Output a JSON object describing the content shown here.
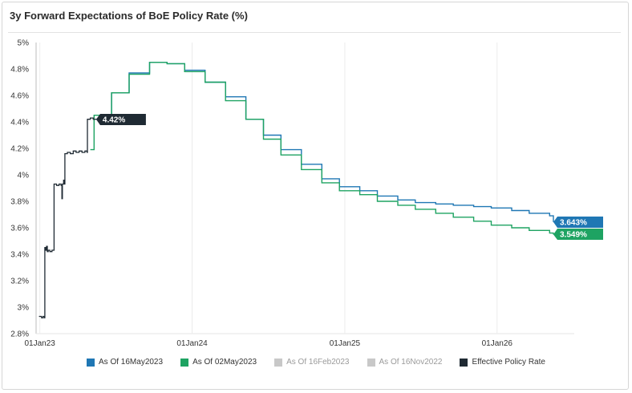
{
  "title": "3y Forward Expectations of BoE Policy Rate (%)",
  "chart_data": {
    "type": "line",
    "title": "3y Forward Expectations of BoE Policy Rate (%)",
    "xlabel": "",
    "ylabel": "",
    "ylim": [
      2.8,
      5.0
    ],
    "y_ticks": [
      "2.8%",
      "3%",
      "3.2%",
      "3.4%",
      "3.6%",
      "3.8%",
      "4%",
      "4.2%",
      "4.4%",
      "4.6%",
      "4.8%",
      "5%"
    ],
    "x_ticks": [
      "01Jan23",
      "01Jan24",
      "01Jan25",
      "01Jan26"
    ],
    "grid": "vertical",
    "legend": "bottom",
    "series": [
      {
        "name": "As Of 16May2023",
        "color": "#1f77b4",
        "end_label": "3.643%",
        "points": [
          [
            "2023-05-16",
            4.42
          ],
          [
            "2023-06-22",
            4.62
          ],
          [
            "2023-08-03",
            4.77
          ],
          [
            "2023-09-21",
            4.85
          ],
          [
            "2023-11-02",
            4.84
          ],
          [
            "2023-12-14",
            4.79
          ],
          [
            "2024-02-01",
            4.7
          ],
          [
            "2024-03-21",
            4.59
          ],
          [
            "2024-05-09",
            4.42
          ],
          [
            "2024-06-20",
            4.3
          ],
          [
            "2024-08-01",
            4.19
          ],
          [
            "2024-09-19",
            4.08
          ],
          [
            "2024-11-07",
            3.97
          ],
          [
            "2024-12-19",
            3.91
          ],
          [
            "2025-02-06",
            3.88
          ],
          [
            "2025-03-20",
            3.84
          ],
          [
            "2025-05-08",
            3.81
          ],
          [
            "2025-06-19",
            3.79
          ],
          [
            "2025-08-07",
            3.78
          ],
          [
            "2025-09-18",
            3.77
          ],
          [
            "2025-11-06",
            3.76
          ],
          [
            "2025-12-18",
            3.75
          ],
          [
            "2026-02-05",
            3.73
          ],
          [
            "2026-03-19",
            3.71
          ],
          [
            "2026-05-07",
            3.69
          ],
          [
            "2026-05-16",
            3.643
          ]
        ]
      },
      {
        "name": "As Of 02May2023",
        "color": "#1ea362",
        "end_label": "3.549%",
        "points": [
          [
            "2023-05-02",
            4.19
          ],
          [
            "2023-05-11",
            4.45
          ],
          [
            "2023-06-22",
            4.62
          ],
          [
            "2023-08-03",
            4.76
          ],
          [
            "2023-09-21",
            4.85
          ],
          [
            "2023-11-02",
            4.84
          ],
          [
            "2023-12-14",
            4.78
          ],
          [
            "2024-02-01",
            4.7
          ],
          [
            "2024-03-21",
            4.56
          ],
          [
            "2024-05-09",
            4.42
          ],
          [
            "2024-06-20",
            4.27
          ],
          [
            "2024-08-01",
            4.15
          ],
          [
            "2024-09-19",
            4.04
          ],
          [
            "2024-11-07",
            3.94
          ],
          [
            "2024-12-19",
            3.88
          ],
          [
            "2025-02-06",
            3.85
          ],
          [
            "2025-03-20",
            3.8
          ],
          [
            "2025-05-08",
            3.77
          ],
          [
            "2025-06-19",
            3.74
          ],
          [
            "2025-08-07",
            3.71
          ],
          [
            "2025-09-18",
            3.68
          ],
          [
            "2025-11-06",
            3.65
          ],
          [
            "2025-12-18",
            3.62
          ],
          [
            "2026-02-05",
            3.6
          ],
          [
            "2026-03-19",
            3.58
          ],
          [
            "2026-05-07",
            3.56
          ],
          [
            "2026-05-16",
            3.549
          ]
        ]
      },
      {
        "name": "As Of 16Feb2023",
        "color": "#c8c8c8",
        "points": []
      },
      {
        "name": "As Of 16Nov2022",
        "color": "#c8c8c8",
        "points": []
      },
      {
        "name": "Effective Policy Rate",
        "color": "#1f2a33",
        "end_label": "4.42%",
        "points": [
          [
            "2022-12-30",
            2.93
          ],
          [
            "2023-01-05",
            2.92
          ],
          [
            "2023-01-09",
            2.93
          ],
          [
            "2023-01-12",
            2.92
          ],
          [
            "2023-01-13",
            3.45
          ],
          [
            "2023-01-15",
            3.43
          ],
          [
            "2023-01-17",
            3.46
          ],
          [
            "2023-01-19",
            3.42
          ],
          [
            "2023-01-21",
            3.43
          ],
          [
            "2023-01-25",
            3.42
          ],
          [
            "2023-01-30",
            3.43
          ],
          [
            "2023-02-03",
            3.43
          ],
          [
            "2023-02-04",
            3.93
          ],
          [
            "2023-02-10",
            3.92
          ],
          [
            "2023-02-16",
            3.93
          ],
          [
            "2023-02-21",
            3.92
          ],
          [
            "2023-02-23",
            3.82
          ],
          [
            "2023-02-24",
            3.93
          ],
          [
            "2023-02-27",
            3.96
          ],
          [
            "2023-03-01",
            3.93
          ],
          [
            "2023-03-02",
            4.16
          ],
          [
            "2023-03-08",
            4.17
          ],
          [
            "2023-03-15",
            4.16
          ],
          [
            "2023-03-22",
            4.18
          ],
          [
            "2023-03-29",
            4.17
          ],
          [
            "2023-04-05",
            4.18
          ],
          [
            "2023-04-12",
            4.17
          ],
          [
            "2023-04-19",
            4.18
          ],
          [
            "2023-04-24",
            4.17
          ],
          [
            "2023-04-25",
            4.42
          ],
          [
            "2023-05-02",
            4.43
          ],
          [
            "2023-05-09",
            4.42
          ],
          [
            "2023-05-16",
            4.42
          ]
        ]
      }
    ]
  }
}
